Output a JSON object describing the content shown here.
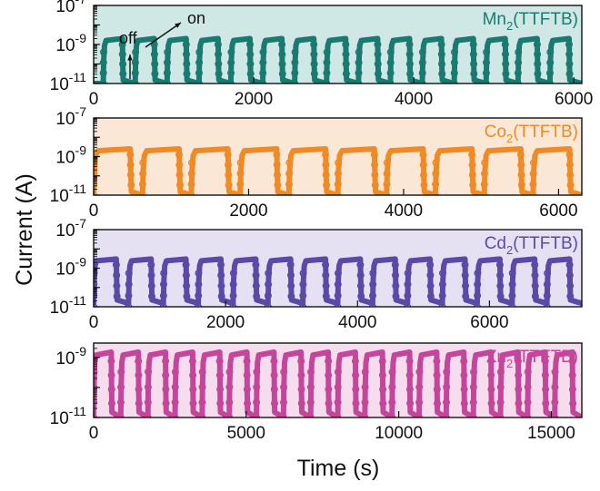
{
  "figure": {
    "ylabel": "Current (A)",
    "xlabel": "Time (s)"
  },
  "chart_data": [
    {
      "type": "line",
      "title": "Mn2(TTFTB)",
      "name_base": "Mn",
      "name_sub": "2",
      "name_tail": "(TTFTB)",
      "color": "#1a7a70",
      "bg": "#cfe8e5",
      "y_scale": "log",
      "ylim": [
        1e-11,
        1e-07
      ],
      "yticks": [
        {
          "exp": "-7",
          "value": 1e-07
        },
        {
          "exp": "-9",
          "value": 1e-09
        },
        {
          "exp": "-11",
          "value": 1e-11
        }
      ],
      "xlim": [
        0,
        6100
      ],
      "xticks": [
        0,
        2000,
        4000,
        6000
      ],
      "cycles": 15,
      "cycle_start": 120,
      "on_fraction": 0.6,
      "on_current": 2e-09,
      "off_current": 1e-11,
      "annotations": {
        "on": "on",
        "off": "off"
      }
    },
    {
      "type": "line",
      "title": "Co2(TTFTB)",
      "name_base": "Co",
      "name_sub": "2",
      "name_tail": "(TTFTB)",
      "color": "#f08a24",
      "bg": "#fbe7d6",
      "y_scale": "log",
      "ylim": [
        1e-11,
        1e-07
      ],
      "yticks": [
        {
          "exp": "-7",
          "value": 1e-07
        },
        {
          "exp": "-9",
          "value": 1e-09
        },
        {
          "exp": "-11",
          "value": 1e-11
        }
      ],
      "xlim": [
        0,
        6300
      ],
      "xticks": [
        0,
        2000,
        4000,
        6000
      ],
      "cycles": 10,
      "cycle_start": 0,
      "on_fraction": 0.75,
      "on_current": 2.5e-09,
      "off_current": 1e-11
    },
    {
      "type": "line",
      "title": "Cd2(TTFTB)",
      "name_base": "Cd",
      "name_sub": "2",
      "name_tail": "(TTFTB)",
      "color": "#5a4aa8",
      "bg": "#e6e1f2",
      "y_scale": "log",
      "ylim": [
        1e-11,
        1e-07
      ],
      "yticks": [
        {
          "exp": "-7",
          "value": 1e-07
        },
        {
          "exp": "-9",
          "value": 1e-09
        },
        {
          "exp": "-11",
          "value": 1e-11
        }
      ],
      "xlim": [
        0,
        7400
      ],
      "xticks": [
        0,
        2000,
        4000,
        6000
      ],
      "cycles": 14,
      "cycle_start": 0,
      "on_fraction": 0.65,
      "on_current": 3e-09,
      "off_current": 1.5e-11
    },
    {
      "type": "line",
      "title": "Zn2(TTFTB)",
      "name_base": "Zn",
      "name_sub": "2",
      "name_tail": "(TTFTB)",
      "color": "#c4469a",
      "bg": "#f6dded",
      "y_scale": "log",
      "ylim": [
        1e-11,
        3e-09
      ],
      "yticks": [
        {
          "exp": "-9",
          "value": 1e-09
        },
        {
          "exp": "-11",
          "value": 1e-11
        }
      ],
      "xlim": [
        0,
        16000
      ],
      "xticks": [
        0,
        5000,
        10000,
        15000
      ],
      "cycles": 18,
      "cycle_start": 0,
      "on_fraction": 0.65,
      "on_current": 1.5e-09,
      "off_current": 1e-11
    }
  ]
}
